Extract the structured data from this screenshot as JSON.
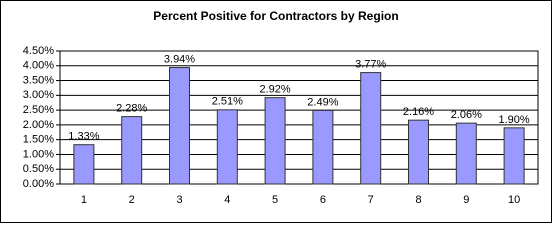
{
  "chart_data": {
    "type": "bar",
    "title": "Percent Positive for Contractors by Region",
    "categories": [
      "1",
      "2",
      "3",
      "4",
      "5",
      "6",
      "7",
      "8",
      "9",
      "10"
    ],
    "values": [
      1.33,
      2.28,
      3.94,
      2.51,
      2.92,
      2.49,
      3.77,
      2.16,
      2.06,
      1.9
    ],
    "value_labels": [
      "1.33%",
      "2.28%",
      "3.94%",
      "2.51%",
      "2.92%",
      "2.49%",
      "3.77%",
      "2.16%",
      "2.06%",
      "1.90%"
    ],
    "color": "#9999ff",
    "ylim": [
      0,
      4.5
    ],
    "yticks": [
      {
        "value": 0,
        "label": "0.00%"
      },
      {
        "value": 0.5,
        "label": "0.50%"
      },
      {
        "value": 1,
        "label": "1.00%"
      },
      {
        "value": 1.5,
        "label": "1.50%"
      },
      {
        "value": 2,
        "label": "2.00%"
      },
      {
        "value": 2.5,
        "label": "2.50%"
      },
      {
        "value": 3,
        "label": "3.00%"
      },
      {
        "value": 3.5,
        "label": "3.50%"
      },
      {
        "value": 4,
        "label": "4.00%"
      },
      {
        "value": 4.5,
        "label": "4.50%"
      }
    ],
    "grid": true
  }
}
